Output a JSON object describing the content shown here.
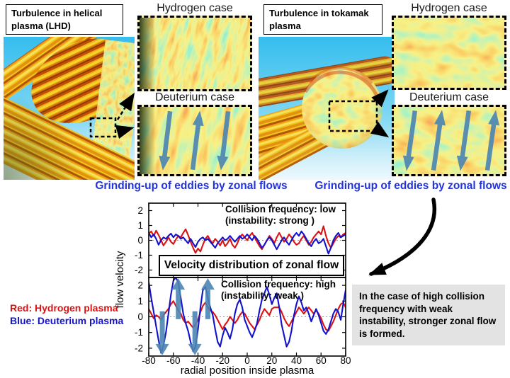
{
  "figure": {
    "left": {
      "title": "Turbulence in helical plasma (LHD)",
      "hydrogen_label": "Hydrogen case",
      "deuterium_label": "Deuterium case",
      "caption": "Grinding-up of eddies by zonal flows"
    },
    "right": {
      "title": "Turbulence in tokamak plasma",
      "hydrogen_label": "Hydrogen case",
      "deuterium_label": "Deuterium case",
      "caption": "Grinding-up of eddies by zonal flows"
    },
    "legend": {
      "red_label": "Red: Hydrogen plasma",
      "blue_label": "Blue: Deuterium plasma"
    },
    "note": "In the case of high collision frequency with weak instability, stronger zonal flow is formed.",
    "colors": {
      "hydrogen": "#dd1111",
      "deuterium": "#1212cc",
      "caption_blue": "#2233dd",
      "zonal_arrow": "#4d86b2",
      "note_bg": "#e3e3e3"
    }
  },
  "chart_data": {
    "type": "line",
    "title": "Velocity distribution of zonal flow",
    "xlabel": "radial position inside plasma",
    "ylabel": "flow velocity",
    "xlim": [
      -80,
      80
    ],
    "ylim": [
      -2.5,
      2.5
    ],
    "x_ticks": [
      -80,
      -60,
      -40,
      -20,
      0,
      20,
      40,
      60,
      80
    ],
    "y_ticks": [
      2,
      1,
      0,
      -1,
      -2
    ],
    "x_start": -80,
    "x_step": 2,
    "grid": false,
    "panels": [
      {
        "annotation": [
          "Collision frequency: low",
          "(instability: strong )"
        ],
        "series": [
          {
            "name": "Hydrogen plasma",
            "color": "#dd1111",
            "values": [
              0.45,
              0.6,
              0.3,
              0.65,
              0.35,
              0.0,
              -0.35,
              -0.1,
              0.2,
              -0.1,
              -0.25,
              0.05,
              0.3,
              0.2,
              0.5,
              0.75,
              0.35,
              -0.1,
              -0.5,
              -0.85,
              -0.55,
              -0.75,
              -0.3,
              0.1,
              0.3,
              0.0,
              -0.2,
              0.1,
              -0.1,
              -0.35,
              0.0,
              -0.4,
              -0.2,
              0.1,
              -0.3,
              -0.5,
              -0.2,
              0.2,
              0.4,
              0.2,
              0.0,
              0.3,
              0.5,
              0.2,
              -0.1,
              -0.4,
              -0.6,
              -0.3,
              0.0,
              0.3,
              0.1,
              -0.2,
              0.2,
              0.5,
              0.2,
              -0.1,
              0.1,
              0.4,
              0.2,
              -0.1,
              -0.3,
              -0.2,
              0.1,
              0.3,
              0.0,
              -0.3,
              -0.1,
              0.2,
              0.4,
              0.6,
              0.4,
              0.95,
              0.3,
              -0.2,
              -0.5,
              -0.2,
              0.1,
              0.3,
              0.2,
              0.4,
              0.5
            ]
          },
          {
            "name": "Deuterium plasma",
            "color": "#1212cc",
            "values": [
              0.5,
              0.2,
              0.4,
              0.1,
              -0.3,
              0.0,
              0.2,
              0.1,
              0.3,
              0.45,
              0.2,
              0.4,
              0.3,
              0.1,
              0.2,
              0.0,
              -0.2,
              0.1,
              -0.2,
              -0.45,
              -0.1,
              0.1,
              0.2,
              0.0,
              0.1,
              -0.1,
              -0.3,
              -0.5,
              -0.2,
              0.0,
              0.2,
              0.0,
              0.1,
              0.3,
              0.1,
              -0.1,
              0.1,
              0.3,
              0.1,
              0.2,
              0.4,
              0.2,
              0.0,
              0.3,
              0.1,
              -0.2,
              -0.5,
              -0.3,
              0.0,
              0.2,
              0.0,
              -0.3,
              -0.6,
              -0.3,
              0.0,
              0.2,
              -0.1,
              -0.3,
              0.0,
              0.3,
              0.5,
              0.3,
              0.6,
              0.4,
              0.1,
              -0.2,
              -0.4,
              -0.1,
              0.1,
              -0.2,
              -0.1,
              0.1,
              -0.4,
              -0.9,
              -0.5,
              0.0,
              0.3,
              0.5,
              0.2,
              0.3,
              0.4
            ]
          }
        ]
      },
      {
        "annotation": [
          "Collision frequency: high",
          "(instability: weak )"
        ],
        "series": [
          {
            "name": "Hydrogen plasma",
            "color": "#dd1111",
            "values": [
              0.5,
              0.2,
              -0.1,
              0.1,
              0.0,
              -0.2,
              0.1,
              0.3,
              0.5,
              0.8,
              1.0,
              0.7,
              0.4,
              0.2,
              -0.2,
              -0.4,
              -0.3,
              -0.5,
              -0.7,
              -0.5,
              -0.2,
              0.3,
              0.7,
              0.9,
              0.6,
              0.4,
              0.3,
              0.1,
              -0.2,
              -0.5,
              -0.8,
              -0.5,
              -0.3,
              0.0,
              -0.2,
              -0.4,
              -0.2,
              0.1,
              0.3,
              0.2,
              -0.1,
              -0.4,
              -0.6,
              -0.8,
              -0.5,
              -0.2,
              0.2,
              0.5,
              0.3,
              0.1,
              0.5,
              0.6,
              0.6,
              0.6,
              0.3,
              -0.1,
              -0.4,
              -0.6,
              -0.3,
              0.0,
              0.3,
              0.6,
              0.4,
              0.2,
              0.4,
              0.6,
              0.4,
              0.2,
              0.4,
              0.2,
              -0.1,
              -0.5,
              -0.8,
              -0.9,
              -0.6,
              -0.3,
              0.1,
              0.5,
              0.8,
              0.9,
              0.6
            ]
          },
          {
            "name": "Deuterium plasma",
            "color": "#1212cc",
            "values": [
              2.2,
              1.2,
              0.3,
              -0.6,
              -1.5,
              -2.3,
              -1.8,
              -1.0,
              0.2,
              1.4,
              2.3,
              2.5,
              2.2,
              1.2,
              0.2,
              -0.4,
              -0.9,
              -1.6,
              -2.2,
              -1.9,
              -0.8,
              0.6,
              1.7,
              1.9,
              1.2,
              0.6,
              0.1,
              -0.8,
              -1.6,
              -1.9,
              -1.2,
              -0.7,
              -1.0,
              -1.4,
              -0.8,
              0.2,
              0.8,
              1.1,
              0.6,
              -0.2,
              -0.6,
              -1.0,
              -1.3,
              -0.9,
              -0.4,
              0.4,
              1.1,
              1.5,
              1.9,
              1.4,
              0.8,
              1.2,
              1.5,
              0.6,
              -0.5,
              -1.2,
              -1.9,
              -1.6,
              -0.9,
              0.1,
              0.8,
              1.3,
              0.9,
              0.4,
              0.6,
              0.2,
              -0.3,
              0.1,
              0.5,
              0.1,
              -0.4,
              -0.9,
              -1.1,
              -0.8,
              -0.3,
              0.2,
              0.5,
              0.3,
              -0.2,
              0.8,
              1.7
            ]
          }
        ],
        "zonal_arrows": [
          {
            "x": -69,
            "from": 0.35,
            "to": -2.45
          },
          {
            "x": -56,
            "from": -0.15,
            "to": 2.45
          },
          {
            "x": -42.5,
            "from": 0.35,
            "to": -2.45
          },
          {
            "x": -32,
            "from": -0.15,
            "to": 2.45
          }
        ]
      }
    ]
  }
}
